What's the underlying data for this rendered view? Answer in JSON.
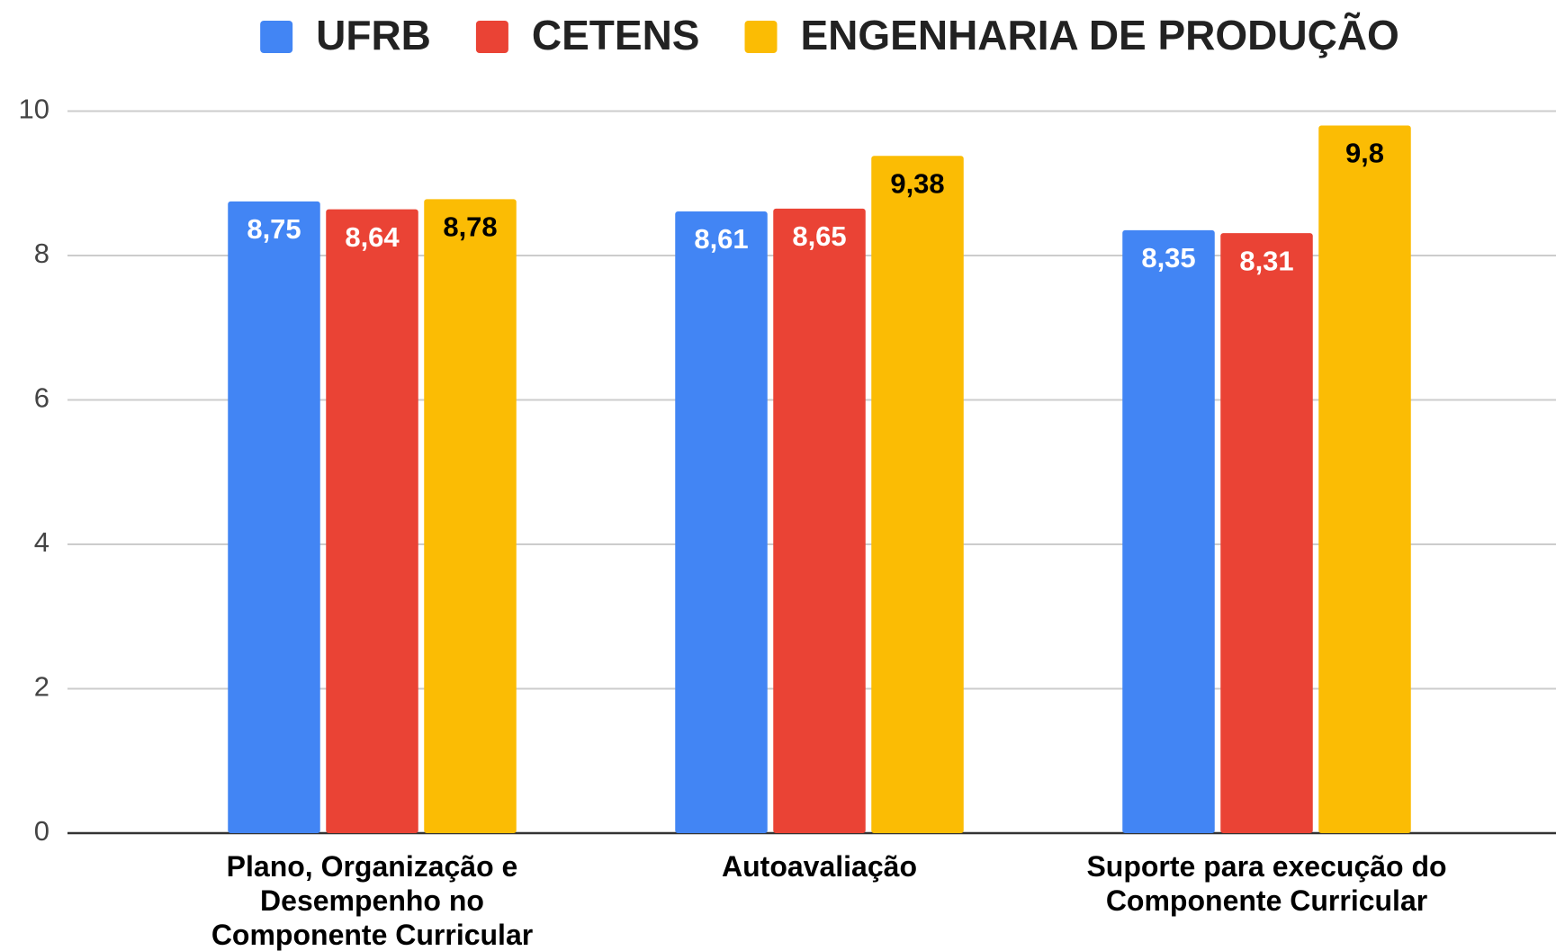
{
  "chart_data": {
    "type": "bar",
    "categories": [
      "Plano, Organização e Desempenho no Componente Curricular",
      "Autoavaliação",
      "Suporte para execução do Componente Curricular"
    ],
    "series": [
      {
        "name": "UFRB",
        "color": "#4285f4",
        "label_color": "#ffffff",
        "values": [
          8.75,
          8.61,
          8.35
        ],
        "value_labels": [
          "8,75",
          "8,61",
          "8,35"
        ]
      },
      {
        "name": "CETENS",
        "color": "#ea4335",
        "label_color": "#ffffff",
        "values": [
          8.64,
          8.65,
          8.31
        ],
        "value_labels": [
          "8,64",
          "8,65",
          "8,31"
        ]
      },
      {
        "name": "ENGENHARIA DE PRODUÇÃO",
        "color": "#fbbc04",
        "label_color": "#000000",
        "values": [
          8.78,
          9.38,
          9.8
        ],
        "value_labels": [
          "8,78",
          "9,38",
          "9,8"
        ]
      }
    ],
    "ylim": [
      0,
      10
    ],
    "yticks": [
      0,
      2,
      4,
      6,
      8,
      10
    ],
    "grid": true,
    "legend": "top"
  }
}
